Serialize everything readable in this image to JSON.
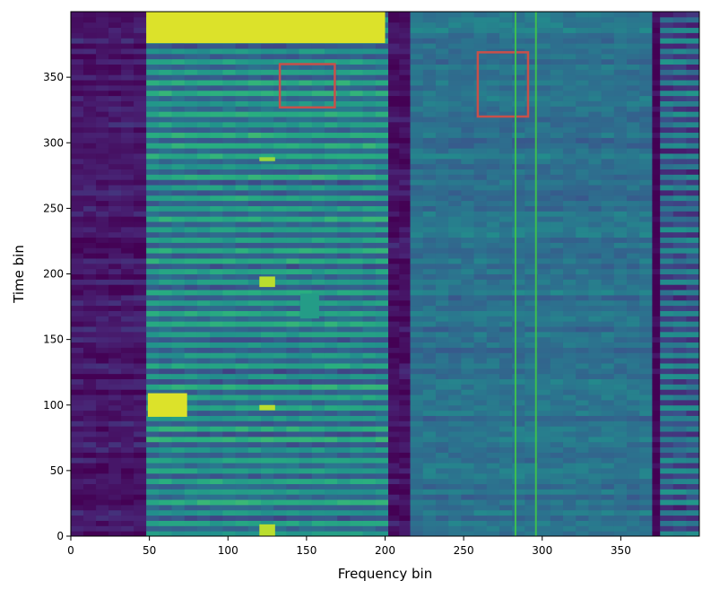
{
  "chart_data": {
    "type": "heatmap",
    "title": "",
    "xlabel": "Frequency bin",
    "ylabel": "Time bin",
    "xlim": [
      0,
      400
    ],
    "ylim": [
      0,
      400
    ],
    "x_ticks": [
      0,
      50,
      100,
      150,
      200,
      250,
      300,
      350
    ],
    "y_ticks": [
      0,
      50,
      100,
      150,
      200,
      250,
      300,
      350
    ],
    "colormap": "viridis",
    "colors": {
      "background": "#440154",
      "dark": "#3b2b72",
      "mid_blue": "#31688e",
      "teal": "#21918c",
      "green": "#5ec962",
      "yellow": "#fde725",
      "box_red": "#c8504a",
      "line_green": "#3fbf4f"
    },
    "bands": [
      {
        "x0": 0,
        "x1": 48,
        "level": 0.08
      },
      {
        "x0": 48,
        "x1": 202,
        "level": 0.45,
        "striped": true
      },
      {
        "x0": 202,
        "x1": 216,
        "level": 0.06
      },
      {
        "x0": 216,
        "x1": 370,
        "level": 0.38
      },
      {
        "x0": 370,
        "x1": 375,
        "level": 0.0
      },
      {
        "x0": 375,
        "x1": 400,
        "level": 0.32,
        "striped": true
      }
    ],
    "hotspots": [
      {
        "x0": 48,
        "x1": 200,
        "y0": 376,
        "y1": 400,
        "level": 0.95
      },
      {
        "x0": 49,
        "x1": 74,
        "y0": 91,
        "y1": 109,
        "level": 0.95
      },
      {
        "x0": 120,
        "x1": 130,
        "y0": 190,
        "y1": 198,
        "level": 0.9
      },
      {
        "x0": 120,
        "x1": 130,
        "y0": 96,
        "y1": 100,
        "level": 0.9
      },
      {
        "x0": 120,
        "x1": 130,
        "y0": 286,
        "y1": 289,
        "level": 0.85
      },
      {
        "x0": 120,
        "x1": 130,
        "y0": 0,
        "y1": 9,
        "level": 0.9
      },
      {
        "x0": 146,
        "x1": 158,
        "y0": 166,
        "y1": 185,
        "level": 0.55
      }
    ],
    "annotations": [
      {
        "type": "rect",
        "x0": 133,
        "x1": 168,
        "y0": 327,
        "y1": 360,
        "color": "#c8504a"
      },
      {
        "type": "rect",
        "x0": 259,
        "x1": 291,
        "y0": 320,
        "y1": 369,
        "color": "#c8504a"
      },
      {
        "type": "vline",
        "x": 283,
        "color": "#3fbf4f"
      },
      {
        "type": "vline",
        "x": 296,
        "color": "#3fbf4f"
      }
    ]
  }
}
